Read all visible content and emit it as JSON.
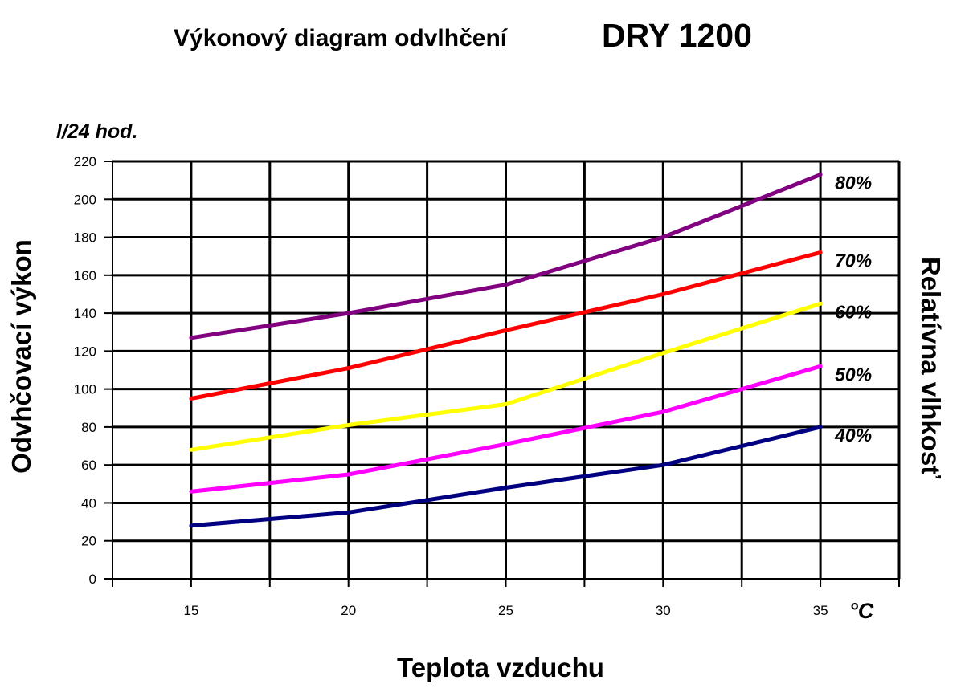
{
  "chart_data": {
    "type": "line",
    "title_main": "Výkonový diagram odvlhčení",
    "title_model": "DRY 1200",
    "unit_label": "l/24 hod.",
    "ylabel": "Odvhčovací výkon",
    "xlabel": "Teplota vzduchu",
    "x_unit": "°C",
    "right_label": "Relatívna vlhkosť",
    "x": [
      15,
      20,
      25,
      30,
      35
    ],
    "xlim": [
      12.5,
      37.5
    ],
    "ylim": [
      0,
      220
    ],
    "y_ticks": [
      0,
      20,
      40,
      60,
      80,
      100,
      120,
      140,
      160,
      180,
      200,
      220
    ],
    "grid": true,
    "series": [
      {
        "name": "80%",
        "color": "#800080",
        "values": [
          127,
          140,
          155,
          180,
          213
        ]
      },
      {
        "name": "70%",
        "color": "#ff0000",
        "values": [
          95,
          111,
          131,
          150,
          172
        ]
      },
      {
        "name": "60%",
        "color": "#ffff00",
        "values": [
          68,
          81,
          92,
          119,
          145
        ]
      },
      {
        "name": "50%",
        "color": "#ff00ff",
        "values": [
          46,
          55,
          71,
          88,
          112
        ]
      },
      {
        "name": "40%",
        "color": "#000080",
        "values": [
          28,
          35,
          48,
          60,
          80
        ]
      }
    ]
  }
}
